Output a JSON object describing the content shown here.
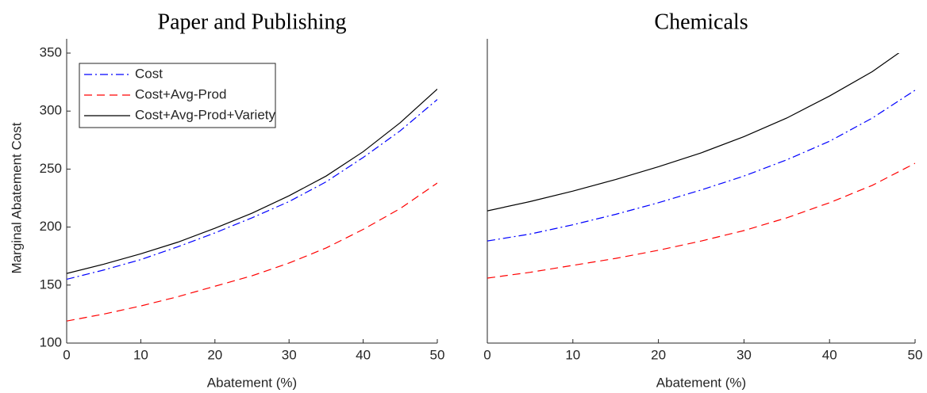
{
  "chart_data": [
    {
      "type": "line",
      "title": "Paper and Publishing",
      "x_label": "Abatement (%)",
      "y_label": "Marginal Abatement Cost",
      "x": [
        0,
        5,
        10,
        15,
        20,
        25,
        30,
        35,
        40,
        45,
        50
      ],
      "xlim": [
        0,
        50
      ],
      "xticks": [
        0,
        10,
        20,
        30,
        40,
        50
      ],
      "ylim": [
        100,
        350
      ],
      "yticks": [
        100,
        150,
        200,
        250,
        300,
        350
      ],
      "legend": "upper left",
      "series": [
        {
          "name": "Cost",
          "color": "#0000ff",
          "dash": "dashdot",
          "values": [
            155,
            163,
            172,
            183,
            195,
            208,
            222,
            239,
            260,
            283,
            310
          ]
        },
        {
          "name": "Cost+Avg-Prod",
          "color": "#ff0000",
          "dash": "dashed",
          "values": [
            119,
            125,
            132,
            140,
            149,
            158,
            169,
            182,
            198,
            216,
            238
          ]
        },
        {
          "name": "Cost+Avg-Prod+Variety",
          "color": "#000000",
          "dash": "solid",
          "values": [
            160,
            168,
            177,
            187,
            199,
            212,
            227,
            244,
            265,
            290,
            319
          ]
        }
      ]
    },
    {
      "type": "line",
      "title": "Chemicals",
      "x_label": "Abatement (%)",
      "x": [
        0,
        5,
        10,
        15,
        20,
        25,
        30,
        35,
        40,
        45,
        50
      ],
      "xlim": [
        0,
        50
      ],
      "xticks": [
        0,
        10,
        20,
        30,
        40,
        50
      ],
      "ylim": [
        100,
        350
      ],
      "series": [
        {
          "color": "#0000ff",
          "dash": "dashdot",
          "values": [
            188,
            194,
            202,
            211,
            221,
            232,
            244,
            258,
            274,
            294,
            318
          ]
        },
        {
          "color": "#ff0000",
          "dash": "dashed",
          "values": [
            156,
            161,
            167,
            173,
            180,
            188,
            197,
            208,
            221,
            236,
            255
          ]
        },
        {
          "color": "#000000",
          "dash": "solid",
          "values": [
            214,
            222,
            231,
            241,
            252,
            264,
            278,
            294,
            313,
            334,
            360
          ]
        }
      ]
    }
  ]
}
